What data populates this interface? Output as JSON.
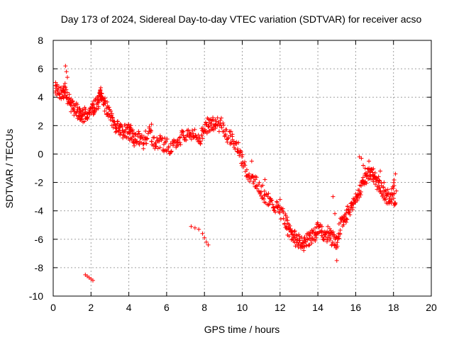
{
  "chart_data": {
    "type": "scatter",
    "title": "Day 173 of 2024, Sidereal Day-to-day VTEC variation (SDTVAR) for receiver acso",
    "xlabel": "GPS time / hours",
    "ylabel": "SDTVAR / TECUs",
    "xlim": [
      0,
      20
    ],
    "ylim": [
      -10,
      8
    ],
    "xticks": [
      0,
      2,
      4,
      6,
      8,
      10,
      12,
      14,
      16,
      18,
      20
    ],
    "yticks": [
      -10,
      -8,
      -6,
      -4,
      -2,
      0,
      2,
      4,
      6,
      8
    ],
    "grid": true,
    "marker": "+",
    "color": "#ff0000",
    "series": [
      {
        "name": "SDTVAR",
        "trace_x": [
          0.1,
          0.3,
          0.5,
          0.6,
          0.8,
          1.0,
          1.2,
          1.4,
          1.5,
          1.7,
          1.9,
          2.1,
          2.2,
          2.4,
          2.5,
          2.6,
          2.8,
          3.0,
          3.2,
          3.4,
          3.6,
          3.8,
          4.0,
          4.1,
          4.3,
          4.5,
          4.8,
          5.1,
          5.4,
          5.7,
          6.0,
          6.3,
          6.6,
          6.9,
          7.2,
          7.5,
          7.8,
          8.0,
          8.2,
          8.4,
          8.6,
          8.9,
          9.2,
          9.5,
          9.8,
          10.1,
          10.4,
          10.7,
          11.0,
          11.3,
          11.6,
          11.9,
          12.2,
          12.4,
          12.6,
          12.8,
          13.0,
          13.2,
          13.4,
          13.6,
          13.8,
          14.0,
          14.2,
          14.4,
          14.6,
          14.8,
          15.0,
          15.2,
          15.4,
          15.6,
          15.8,
          16.0,
          16.2,
          16.4,
          16.6,
          16.8,
          17.0,
          17.2,
          17.4,
          17.6,
          17.8,
          18.0,
          18.1
        ],
        "trace_y": [
          4.8,
          4.3,
          4.1,
          4.7,
          3.8,
          3.4,
          3.1,
          2.9,
          2.6,
          2.8,
          3.0,
          3.1,
          3.4,
          3.7,
          4.5,
          3.8,
          3.3,
          2.8,
          2.2,
          1.8,
          1.6,
          1.5,
          1.6,
          1.4,
          1.0,
          1.2,
          0.8,
          1.7,
          0.6,
          0.8,
          0.5,
          0.4,
          0.9,
          1.2,
          1.5,
          1.3,
          1.1,
          1.7,
          2.0,
          2.2,
          2.1,
          2.0,
          1.3,
          0.9,
          0.2,
          -0.8,
          -1.6,
          -2.0,
          -2.6,
          -3.2,
          -3.5,
          -3.8,
          -4.5,
          -5.2,
          -5.6,
          -5.9,
          -6.2,
          -6.4,
          -6.0,
          -5.9,
          -5.7,
          -5.2,
          -5.4,
          -5.8,
          -5.5,
          -6.0,
          -6.2,
          -5.0,
          -4.6,
          -4.0,
          -3.6,
          -3.2,
          -2.5,
          -2.0,
          -1.5,
          -1.2,
          -1.6,
          -2.1,
          -2.6,
          -3.0,
          -3.3,
          -2.2,
          -3.8
        ],
        "scatter_x": [
          0.65,
          0.7,
          0.75,
          2.3,
          3.5,
          5.2,
          7.3,
          7.5,
          7.7,
          7.9,
          8.0,
          8.1,
          8.2,
          1.7,
          1.8,
          1.9,
          2.0,
          2.1,
          16.2,
          16.3,
          16.4,
          16.5,
          16.7,
          16.9,
          17.1,
          17.3,
          17.5,
          17.7,
          17.9,
          18.1,
          18.15,
          15.0,
          15.5,
          9.4,
          9.8,
          10.5,
          11.2,
          12.0,
          14.8,
          14.9
        ],
        "scatter_y": [
          6.2,
          5.8,
          5.4,
          3.5,
          2.0,
          2.1,
          -5.1,
          -5.2,
          -5.3,
          -5.6,
          -5.9,
          -6.2,
          -6.4,
          -8.5,
          -8.6,
          -8.7,
          -8.8,
          -8.9,
          -0.2,
          -0.3,
          -0.8,
          -1.0,
          -0.5,
          -1.3,
          -1.7,
          -1.2,
          -2.0,
          -2.5,
          -2.8,
          -1.4,
          -2.6,
          -7.5,
          -4.8,
          1.6,
          0.8,
          -0.5,
          -1.8,
          -3.2,
          -3.0,
          -4.2
        ]
      }
    ]
  }
}
